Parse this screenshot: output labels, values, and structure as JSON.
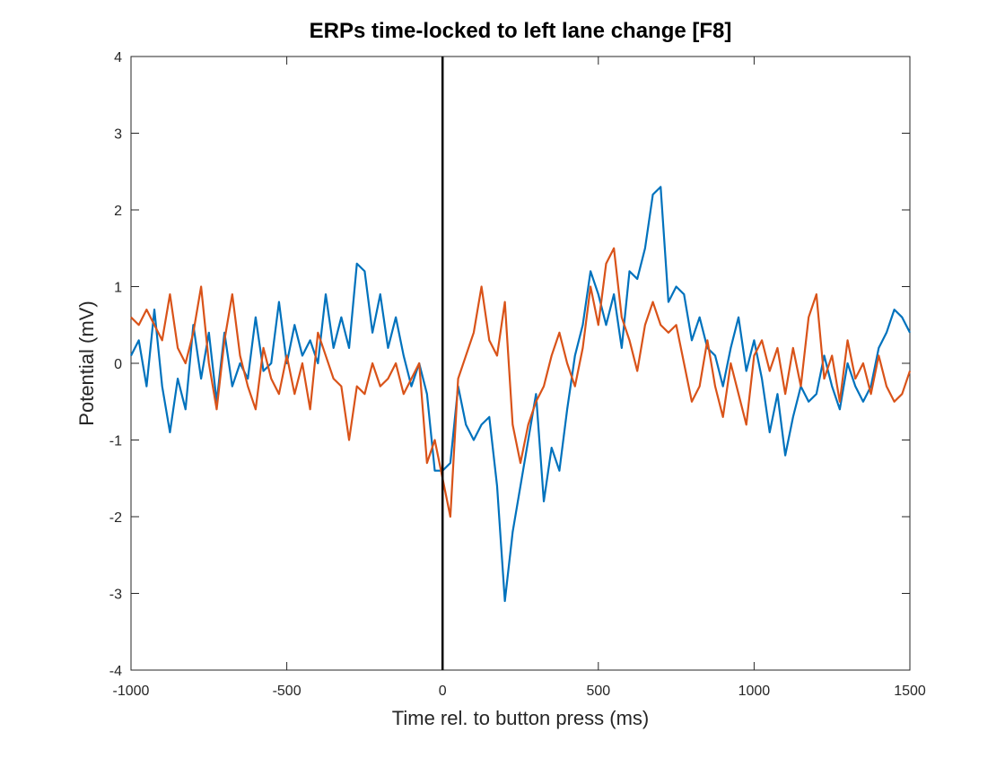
{
  "chart_data": {
    "type": "line",
    "title": "ERPs time-locked to left lane change [F8]",
    "x_label": "Time rel. to button press (ms)",
    "y_label": "Potential (mV)",
    "xlim": [
      -1000,
      1500
    ],
    "ylim": [
      -4,
      4
    ],
    "xticks": [
      -1000,
      -500,
      0,
      500,
      1000,
      1500
    ],
    "yticks": [
      -4,
      -3,
      -2,
      -1,
      0,
      1,
      2,
      3,
      4
    ],
    "vline": 0,
    "vline_color": "#000000",
    "x": [
      -1000,
      -975,
      -950,
      -925,
      -900,
      -875,
      -850,
      -825,
      -800,
      -775,
      -750,
      -725,
      -700,
      -675,
      -650,
      -625,
      -600,
      -575,
      -550,
      -525,
      -500,
      -475,
      -450,
      -425,
      -400,
      -375,
      -350,
      -325,
      -300,
      -275,
      -250,
      -225,
      -200,
      -175,
      -150,
      -125,
      -100,
      -75,
      -50,
      -25,
      0,
      25,
      50,
      75,
      100,
      125,
      150,
      175,
      200,
      225,
      250,
      275,
      300,
      325,
      350,
      375,
      400,
      425,
      450,
      475,
      500,
      525,
      550,
      575,
      600,
      625,
      650,
      675,
      700,
      725,
      750,
      775,
      800,
      825,
      850,
      875,
      900,
      925,
      950,
      975,
      1000,
      1025,
      1050,
      1075,
      1100,
      1125,
      1150,
      1175,
      1200,
      1225,
      1250,
      1275,
      1300,
      1325,
      1350,
      1375,
      1400,
      1425,
      1450,
      1475,
      1500
    ],
    "series": [
      {
        "color": "#0072bd",
        "values": [
          0.1,
          0.3,
          -0.3,
          0.7,
          -0.3,
          -0.9,
          -0.2,
          -0.6,
          0.5,
          -0.2,
          0.4,
          -0.5,
          0.4,
          -0.3,
          0.0,
          -0.2,
          0.6,
          -0.1,
          0.0,
          0.8,
          0.0,
          0.5,
          0.1,
          0.3,
          0.0,
          0.9,
          0.2,
          0.6,
          0.2,
          1.3,
          1.2,
          0.4,
          0.9,
          0.2,
          0.6,
          0.1,
          -0.3,
          0.0,
          -0.4,
          -1.4,
          -1.4,
          -1.3,
          -0.3,
          -0.8,
          -1.0,
          -0.8,
          -0.7,
          -1.6,
          -3.1,
          -2.2,
          -1.6,
          -1.0,
          -0.4,
          -1.8,
          -1.1,
          -1.4,
          -0.6,
          0.1,
          0.5,
          1.2,
          0.9,
          0.5,
          0.9,
          0.2,
          1.2,
          1.1,
          1.5,
          2.2,
          2.3,
          0.8,
          1.0,
          0.9,
          0.3,
          0.6,
          0.2,
          0.1,
          -0.3,
          0.2,
          0.6,
          -0.1,
          0.3,
          -0.2,
          -0.9,
          -0.4,
          -1.2,
          -0.7,
          -0.3,
          -0.5,
          -0.4,
          0.1,
          -0.3,
          -0.6,
          0.0,
          -0.3,
          -0.5,
          -0.3,
          0.2,
          0.4,
          0.7,
          0.6,
          0.4
        ]
      },
      {
        "color": "#d95319",
        "values": [
          0.6,
          0.5,
          0.7,
          0.5,
          0.3,
          0.9,
          0.2,
          0.0,
          0.4,
          1.0,
          0.0,
          -0.6,
          0.3,
          0.9,
          0.1,
          -0.3,
          -0.6,
          0.2,
          -0.2,
          -0.4,
          0.1,
          -0.4,
          0.0,
          -0.6,
          0.4,
          0.1,
          -0.2,
          -0.3,
          -1.0,
          -0.3,
          -0.4,
          0.0,
          -0.3,
          -0.2,
          0.0,
          -0.4,
          -0.2,
          0.0,
          -1.3,
          -1.0,
          -1.5,
          -2.0,
          -0.2,
          0.1,
          0.4,
          1.0,
          0.3,
          0.1,
          0.8,
          -0.8,
          -1.3,
          -0.8,
          -0.5,
          -0.3,
          0.1,
          0.4,
          0.0,
          -0.3,
          0.2,
          1.0,
          0.5,
          1.3,
          1.5,
          0.6,
          0.3,
          -0.1,
          0.5,
          0.8,
          0.5,
          0.4,
          0.5,
          0.0,
          -0.5,
          -0.3,
          0.3,
          -0.3,
          -0.7,
          0.0,
          -0.4,
          -0.8,
          0.1,
          0.3,
          -0.1,
          0.2,
          -0.4,
          0.2,
          -0.3,
          0.6,
          0.9,
          -0.2,
          0.1,
          -0.5,
          0.3,
          -0.2,
          0.0,
          -0.4,
          0.1,
          -0.3,
          -0.5,
          -0.4,
          -0.1
        ]
      }
    ]
  }
}
